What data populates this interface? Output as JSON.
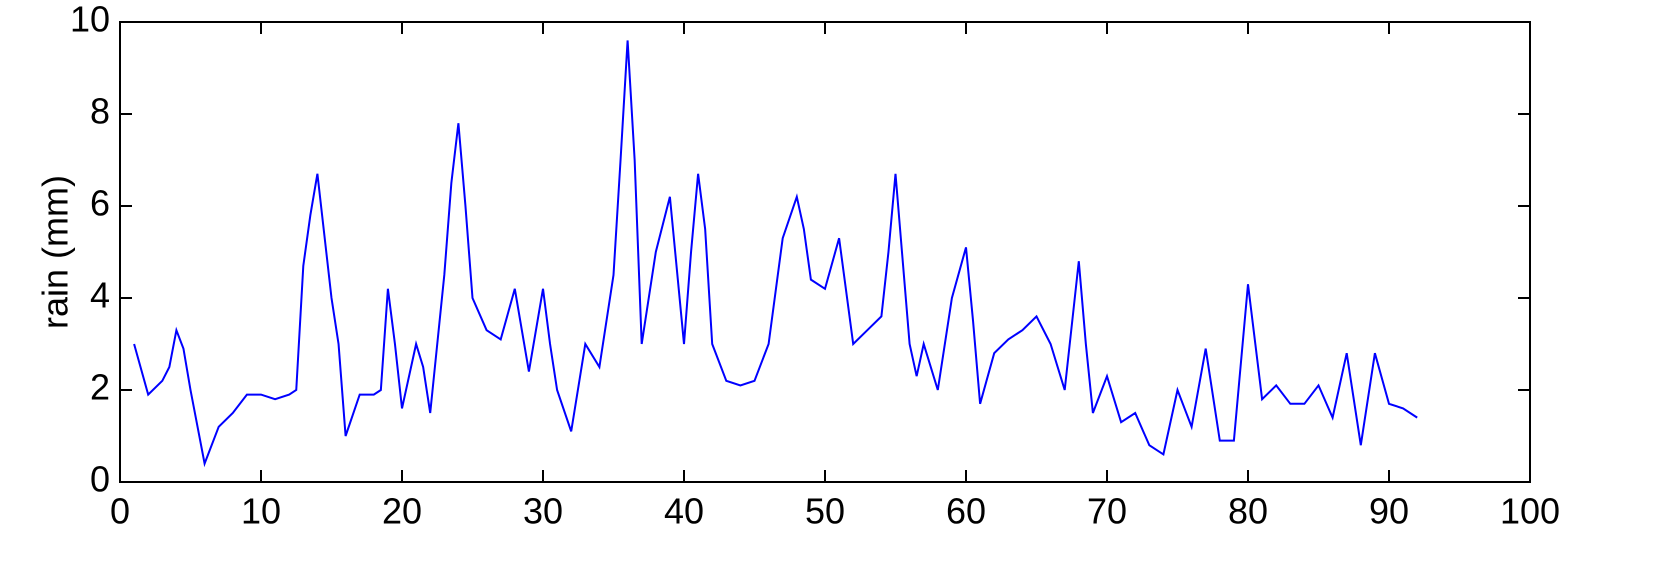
{
  "chart_data": {
    "type": "line",
    "ylabel": "rain (mm)",
    "x": [
      1,
      2,
      3,
      3.5,
      4,
      4.5,
      5,
      6,
      7,
      8,
      9,
      10,
      11,
      12,
      12.5,
      13,
      13.5,
      14,
      15,
      15.5,
      16,
      17,
      18,
      18.5,
      19,
      19.5,
      20,
      21,
      21.5,
      22,
      23,
      23.5,
      24,
      24.5,
      25,
      26,
      27,
      28,
      29,
      30,
      30.5,
      31,
      32,
      33,
      34,
      35,
      35.5,
      36,
      36.5,
      37,
      37.5,
      38,
      39,
      40,
      40.5,
      41,
      41.5,
      42,
      43,
      44,
      45,
      46,
      47,
      48,
      48.5,
      49,
      50,
      51,
      52,
      53,
      54,
      54.5,
      55,
      56,
      56.5,
      57,
      58,
      59,
      60,
      60.5,
      61,
      62,
      63,
      64,
      65,
      66,
      67,
      68,
      68.5,
      69,
      70,
      71,
      72,
      73,
      74,
      75,
      76,
      77,
      78,
      79,
      80,
      81,
      82,
      83,
      84,
      85,
      86,
      87,
      88,
      89,
      90,
      91,
      92
    ],
    "series": [
      {
        "color": "#0000ff",
        "values": [
          3.0,
          1.9,
          2.2,
          2.5,
          3.3,
          2.9,
          2.0,
          0.4,
          1.2,
          1.5,
          1.9,
          1.9,
          1.8,
          1.9,
          2.0,
          4.7,
          5.8,
          6.7,
          4.0,
          3.0,
          1.0,
          1.9,
          1.9,
          2.0,
          4.2,
          3.0,
          1.6,
          3.0,
          2.5,
          1.5,
          4.5,
          6.5,
          7.8,
          6.0,
          4.0,
          3.3,
          3.1,
          4.2,
          2.4,
          4.2,
          3.0,
          2.0,
          1.1,
          3.0,
          2.5,
          4.5,
          7.0,
          9.6,
          7.0,
          3.0,
          4.0,
          5.0,
          6.2,
          3.0,
          5.0,
          6.7,
          5.5,
          3.0,
          2.2,
          2.1,
          2.2,
          3.0,
          5.3,
          6.2,
          5.5,
          4.4,
          4.2,
          5.3,
          3.0,
          3.3,
          3.6,
          5.0,
          6.7,
          3.0,
          2.3,
          3.0,
          2.0,
          4.0,
          5.1,
          3.5,
          1.7,
          2.8,
          3.1,
          3.3,
          3.6,
          3.0,
          2.0,
          4.8,
          3.0,
          1.5,
          2.3,
          1.3,
          1.5,
          0.8,
          0.6,
          2.0,
          1.2,
          2.9,
          0.9,
          0.9,
          4.3,
          1.8,
          2.1,
          1.7,
          1.7,
          2.1,
          1.4,
          2.8,
          0.8,
          2.8,
          1.7,
          1.6,
          1.4
        ]
      }
    ],
    "xlim": [
      0,
      100
    ],
    "xticks": [
      0,
      10,
      20,
      30,
      40,
      50,
      60,
      70,
      80,
      90,
      100
    ],
    "ylim": [
      0,
      10
    ],
    "yticks": [
      0,
      2,
      4,
      6,
      8,
      10
    ],
    "grid": false
  }
}
